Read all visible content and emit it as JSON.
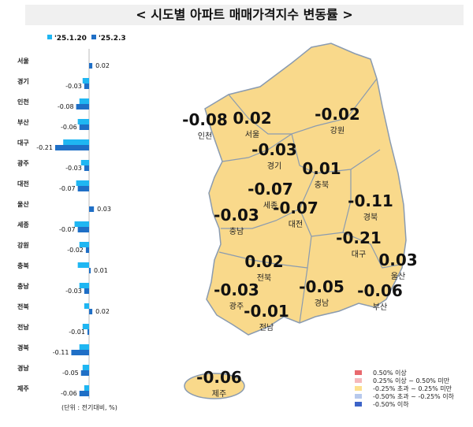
{
  "title": "< 시도별 아파트 매매가격지수 변동률 >",
  "chart_data": {
    "type": "bar",
    "orientation": "horizontal",
    "categories": [
      "서울",
      "경기",
      "인천",
      "부산",
      "대구",
      "광주",
      "대전",
      "울산",
      "세종",
      "강원",
      "충북",
      "충남",
      "전북",
      "전남",
      "경북",
      "경남",
      "제주"
    ],
    "series": [
      {
        "name": "'25.1.20",
        "color": "#1fb6f2",
        "values": [
          0.0,
          -0.04,
          -0.06,
          -0.07,
          -0.16,
          -0.05,
          -0.08,
          0.0,
          -0.09,
          -0.06,
          -0.07,
          -0.06,
          -0.03,
          -0.04,
          -0.06,
          -0.04,
          -0.03
        ]
      },
      {
        "name": "'25.2.3",
        "color": "#1f6fc6",
        "values": [
          0.02,
          -0.03,
          -0.08,
          -0.06,
          -0.21,
          -0.03,
          -0.07,
          0.03,
          -0.07,
          -0.02,
          0.01,
          -0.03,
          0.02,
          -0.01,
          -0.11,
          -0.05,
          -0.06
        ]
      }
    ],
    "data_labels": [
      "0.02",
      "-0.03",
      "-0.08",
      "-0.06",
      "-0.21",
      "-0.03",
      "-0.07",
      "0.03",
      "-0.07",
      "-0.02",
      "0.01",
      "-0.03",
      "0.02",
      "-0.01",
      "-0.11",
      "-0.05",
      "-0.06"
    ],
    "legend_position": "top",
    "unit_note": "(단위 : 전기대비, %)"
  },
  "map": {
    "fill": "#f9d98b",
    "regions": [
      {
        "name": "인천",
        "value": "-0.08"
      },
      {
        "name": "서울",
        "value": "0.02"
      },
      {
        "name": "강원",
        "value": "-0.02"
      },
      {
        "name": "경기",
        "value": "-0.03"
      },
      {
        "name": "충북",
        "value": "0.01"
      },
      {
        "name": "세종",
        "value": "-0.07"
      },
      {
        "name": "대전",
        "value": "-0.07"
      },
      {
        "name": "경북",
        "value": "-0.11"
      },
      {
        "name": "충남",
        "value": "-0.03"
      },
      {
        "name": "대구",
        "value": "-0.21"
      },
      {
        "name": "전북",
        "value": "0.02"
      },
      {
        "name": "울산",
        "value": "0.03"
      },
      {
        "name": "광주",
        "value": "-0.03"
      },
      {
        "name": "경남",
        "value": "-0.05"
      },
      {
        "name": "부산",
        "value": "-0.06"
      },
      {
        "name": "전남",
        "value": "-0.01"
      },
      {
        "name": "제주",
        "value": "-0.06"
      }
    ]
  },
  "legend": [
    {
      "label": "0.50% 이상",
      "color": "#e8696e"
    },
    {
      "label": "0.25% 이상 ~ 0.50% 미만",
      "color": "#f5b8bb"
    },
    {
      "label": "-0.25% 초과 ~ 0.25% 미만",
      "color": "#fde08e"
    },
    {
      "label": "-0.50% 초과 ~ -0.25% 이하",
      "color": "#b7c9ec"
    },
    {
      "label": "-0.50% 이하",
      "color": "#3d64c8"
    }
  ]
}
